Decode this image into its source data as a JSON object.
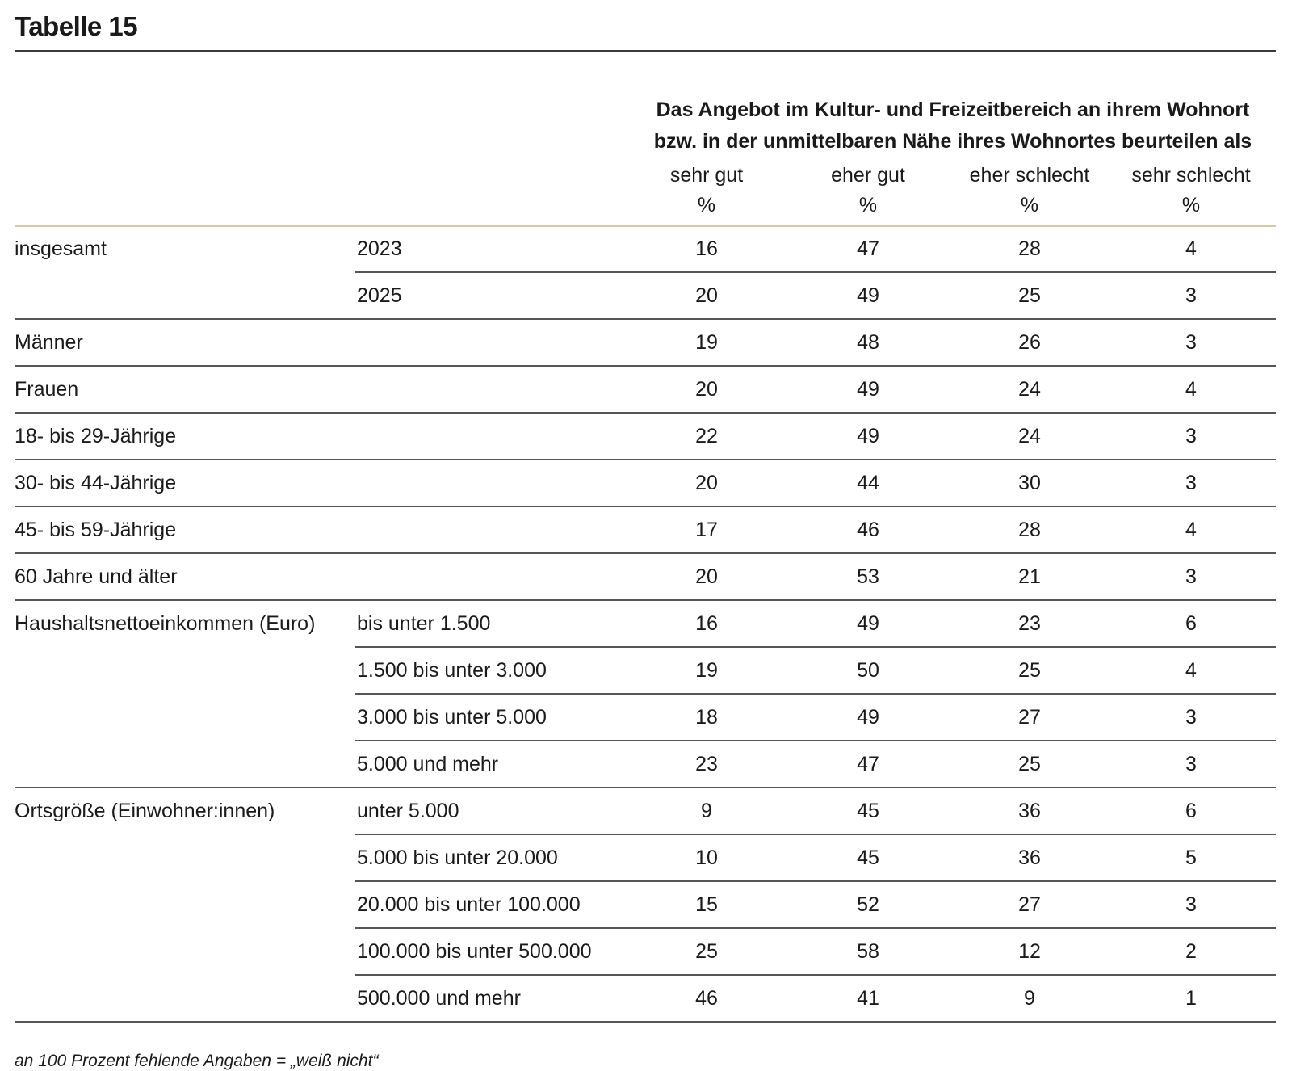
{
  "title": "Tabelle 15",
  "header": {
    "line1": "Das Angebot im Kultur- und Freizeitbereich an ihrem Wohnort",
    "line2": "bzw. in der unmittelbaren Nähe ihres Wohnortes beurteilen als",
    "columns": [
      {
        "label": "sehr gut",
        "unit": "%"
      },
      {
        "label": "eher gut",
        "unit": "%"
      },
      {
        "label": "eher schlecht",
        "unit": "%"
      },
      {
        "label": "sehr schlecht",
        "unit": "%"
      }
    ]
  },
  "rows": [
    {
      "group": "insgesamt",
      "sub": "2023",
      "values": [
        "16",
        "47",
        "28",
        "4"
      ]
    },
    {
      "group": "",
      "sub": "2025",
      "values": [
        "20",
        "49",
        "25",
        "3"
      ]
    },
    {
      "group": "Männer",
      "sub": "",
      "values": [
        "19",
        "48",
        "26",
        "3"
      ]
    },
    {
      "group": "Frauen",
      "sub": "",
      "values": [
        "20",
        "49",
        "24",
        "4"
      ]
    },
    {
      "group": "18- bis 29-Jährige",
      "sub": "",
      "values": [
        "22",
        "49",
        "24",
        "3"
      ]
    },
    {
      "group": "30- bis 44-Jährige",
      "sub": "",
      "values": [
        "20",
        "44",
        "30",
        "3"
      ]
    },
    {
      "group": "45- bis 59-Jährige",
      "sub": "",
      "values": [
        "17",
        "46",
        "28",
        "4"
      ]
    },
    {
      "group": "60 Jahre und älter",
      "sub": "",
      "values": [
        "20",
        "53",
        "21",
        "3"
      ]
    },
    {
      "group": "Haushaltsnettoeinkommen (Euro)",
      "sub": "bis unter 1.500",
      "values": [
        "16",
        "49",
        "23",
        "6"
      ]
    },
    {
      "group": "",
      "sub": "1.500 bis unter 3.000",
      "values": [
        "19",
        "50",
        "25",
        "4"
      ]
    },
    {
      "group": "",
      "sub": "3.000 bis unter 5.000",
      "values": [
        "18",
        "49",
        "27",
        "3"
      ]
    },
    {
      "group": "",
      "sub": "5.000 und mehr",
      "values": [
        "23",
        "47",
        "25",
        "3"
      ]
    },
    {
      "group": "Ortsgröße (Einwohner:innen)",
      "sub": "unter 5.000",
      "values": [
        "9",
        "45",
        "36",
        "6"
      ]
    },
    {
      "group": "",
      "sub": "5.000 bis unter 20.000",
      "values": [
        "10",
        "45",
        "36",
        "5"
      ]
    },
    {
      "group": "",
      "sub": "20.000 bis unter 100.000",
      "values": [
        "15",
        "52",
        "27",
        "3"
      ]
    },
    {
      "group": "",
      "sub": "100.000 bis unter 500.000",
      "values": [
        "25",
        "58",
        "12",
        "2"
      ]
    },
    {
      "group": "",
      "sub": "500.000 und mehr",
      "values": [
        "46",
        "41",
        "9",
        "1"
      ]
    }
  ],
  "footnote": "an 100 Prozent fehlende Angaben = „weiß nicht“"
}
